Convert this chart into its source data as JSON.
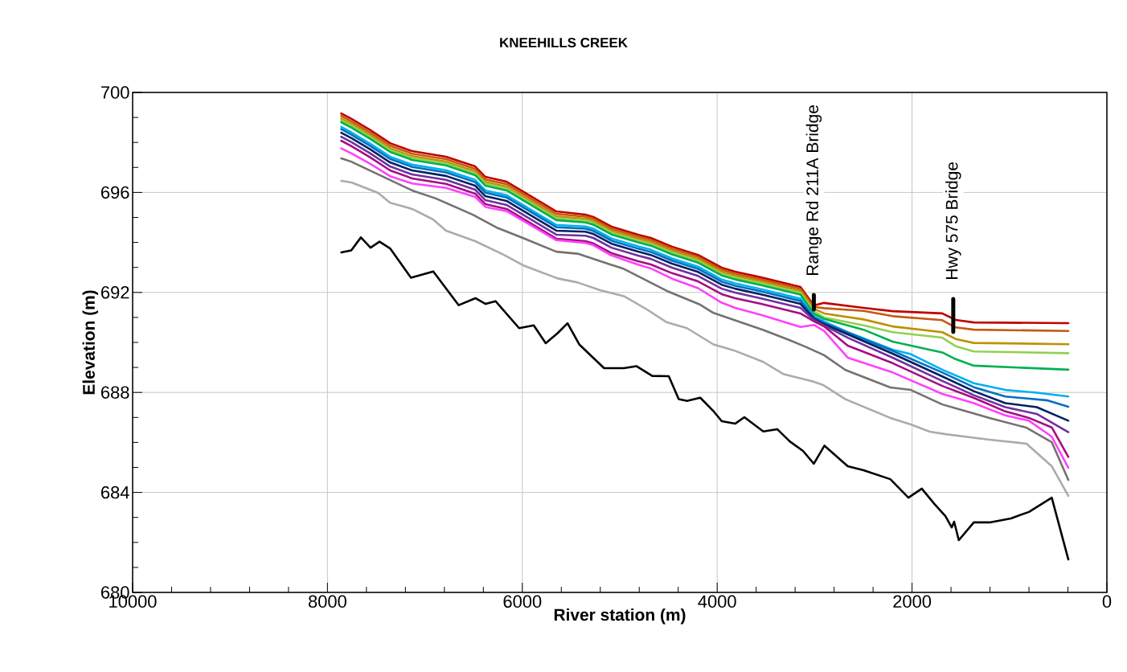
{
  "chart_data": {
    "type": "line",
    "title": "KNEEHILLS CREEK",
    "xlabel": "River station (m)",
    "ylabel": "Elevation (m)",
    "xlim": [
      10000,
      0
    ],
    "ylim": [
      680,
      700
    ],
    "xticks": [
      10000,
      {
        "value": 9600,
        "label": null
      },
      {
        "value": 9200,
        "label": null
      },
      {
        "value": 8800,
        "label": null
      },
      {
        "value": 8400,
        "label": null
      },
      8000,
      {
        "value": 7600,
        "label": null
      },
      {
        "value": 7200,
        "label": null
      },
      {
        "value": 6800,
        "label": null
      },
      {
        "value": 6400,
        "label": null
      },
      6000,
      {
        "value": 5600,
        "label": null
      },
      {
        "value": 5200,
        "label": null
      },
      {
        "value": 4800,
        "label": null
      },
      {
        "value": 4400,
        "label": null
      },
      4000,
      {
        "value": 3600,
        "label": null
      },
      {
        "value": 3200,
        "label": null
      },
      {
        "value": 2800,
        "label": null
      },
      {
        "value": 2400,
        "label": null
      },
      2000,
      {
        "value": 1600,
        "label": null
      },
      {
        "value": 1200,
        "label": null
      },
      {
        "value": 800,
        "label": null
      },
      {
        "value": 400,
        "label": null
      },
      0
    ],
    "yticks": [
      680,
      {
        "value": 681,
        "label": null
      },
      {
        "value": 682,
        "label": null
      },
      {
        "value": 683,
        "label": null
      },
      684,
      {
        "value": 685,
        "label": null
      },
      {
        "value": 686,
        "label": null
      },
      {
        "value": 687,
        "label": null
      },
      688,
      {
        "value": 689,
        "label": null
      },
      {
        "value": 690,
        "label": null
      },
      {
        "value": 691,
        "label": null
      },
      692,
      {
        "value": 693,
        "label": null
      },
      {
        "value": 694,
        "label": null
      },
      {
        "value": 695,
        "label": null
      },
      696,
      {
        "value": 697,
        "label": null
      },
      {
        "value": 698,
        "label": null
      },
      {
        "value": 699,
        "label": null
      },
      700
    ],
    "grid": true,
    "series": [
      {
        "color": "#c00000",
        "x": [
          7859,
          7753,
          7560,
          7357,
          7131,
          6783,
          6484,
          6379,
          6161,
          5651,
          5352,
          5271,
          5085,
          4811,
          4681,
          4463,
          4196,
          3954,
          3816,
          3549,
          3145,
          3008,
          2903,
          2498,
          2199,
          1690,
          1552,
          1366,
          396
        ],
        "values": [
          699.16,
          698.94,
          698.49,
          697.97,
          697.65,
          697.43,
          697.04,
          696.62,
          696.43,
          695.24,
          695.11,
          695.02,
          694.63,
          694.31,
          694.18,
          693.83,
          693.5,
          692.99,
          692.83,
          692.6,
          692.22,
          691.48,
          691.58,
          691.38,
          691.25,
          691.16,
          690.9,
          690.8,
          690.77
        ]
      },
      {
        "color": "#c55a11",
        "x": [
          7859,
          7753,
          7560,
          7357,
          7131,
          6783,
          6484,
          6379,
          6161,
          5651,
          5352,
          5271,
          5085,
          4811,
          4681,
          4463,
          4196,
          3954,
          3816,
          3549,
          3145,
          3008,
          2903,
          2498,
          2199,
          1690,
          1552,
          1366,
          396
        ],
        "values": [
          699.06,
          698.84,
          698.39,
          697.87,
          697.55,
          697.33,
          696.94,
          696.52,
          696.33,
          695.14,
          695.03,
          694.94,
          694.55,
          694.23,
          694.1,
          693.75,
          693.42,
          692.91,
          692.75,
          692.52,
          692.14,
          691.42,
          691.37,
          691.26,
          691.05,
          690.89,
          690.6,
          690.51,
          690.46
        ]
      },
      {
        "color": "#bf9000",
        "x": [
          7859,
          7753,
          7560,
          7357,
          7131,
          6783,
          6484,
          6379,
          6161,
          5651,
          5352,
          5271,
          5085,
          4811,
          4681,
          4463,
          4196,
          3954,
          3816,
          3549,
          3145,
          3008,
          2903,
          2498,
          2199,
          1690,
          1552,
          1366,
          396
        ],
        "values": [
          698.96,
          698.74,
          698.29,
          697.77,
          697.45,
          697.23,
          696.84,
          696.42,
          696.23,
          695.04,
          694.95,
          694.86,
          694.47,
          694.15,
          694.02,
          693.67,
          693.34,
          692.83,
          692.67,
          692.44,
          692.06,
          691.35,
          691.16,
          690.92,
          690.64,
          690.41,
          690.14,
          689.98,
          689.93
        ]
      },
      {
        "color": "#92d050",
        "x": [
          7859,
          7753,
          7560,
          7357,
          7131,
          6783,
          6484,
          6379,
          6161,
          5651,
          5352,
          5271,
          5085,
          4811,
          4681,
          4463,
          4196,
          3954,
          3816,
          3549,
          3145,
          3008,
          2903,
          2498,
          2199,
          1690,
          1552,
          1366,
          396
        ],
        "values": [
          698.89,
          698.67,
          698.22,
          697.7,
          697.38,
          697.16,
          696.77,
          696.35,
          696.16,
          694.97,
          694.87,
          694.78,
          694.39,
          694.07,
          693.94,
          693.59,
          693.26,
          692.75,
          692.59,
          692.36,
          691.98,
          691.25,
          691.0,
          690.68,
          690.41,
          690.19,
          689.85,
          689.64,
          689.57
        ]
      },
      {
        "color": "#00b050",
        "x": [
          7859,
          7753,
          7560,
          7357,
          7131,
          6783,
          6484,
          6379,
          6161,
          5651,
          5352,
          5271,
          5085,
          4811,
          4681,
          4463,
          4196,
          3954,
          3816,
          3549,
          3145,
          3008,
          2903,
          2498,
          2199,
          1690,
          1552,
          1366,
          396
        ],
        "values": [
          698.81,
          698.59,
          698.14,
          697.62,
          697.3,
          697.08,
          696.69,
          696.27,
          696.08,
          694.89,
          694.8,
          694.71,
          694.32,
          694.0,
          693.87,
          693.52,
          693.19,
          692.68,
          692.52,
          692.29,
          691.91,
          691.15,
          690.94,
          690.51,
          690.03,
          689.6,
          689.33,
          689.07,
          688.91
        ]
      },
      {
        "color": "#00b0f0",
        "x": [
          7859,
          7753,
          7560,
          7357,
          7131,
          6783,
          6484,
          6379,
          6161,
          5651,
          5352,
          5271,
          5085,
          4811,
          4681,
          4463,
          4196,
          3954,
          3816,
          3549,
          3145,
          3008,
          2903,
          2660,
          2199,
          2013,
          1690,
          1366,
          1043,
          720,
          396
        ],
        "values": [
          698.62,
          698.4,
          697.95,
          697.43,
          697.11,
          696.89,
          696.5,
          696.08,
          695.89,
          694.7,
          694.64,
          694.55,
          694.16,
          693.84,
          693.71,
          693.36,
          693.03,
          692.52,
          692.36,
          692.13,
          691.75,
          691.05,
          690.84,
          690.41,
          689.71,
          689.53,
          688.91,
          688.37,
          688.1,
          687.99,
          687.84
        ]
      },
      {
        "color": "#0070c0",
        "x": [
          7859,
          7753,
          7560,
          7357,
          7131,
          6783,
          6484,
          6379,
          6161,
          5651,
          5352,
          5271,
          5085,
          4811,
          4681,
          4463,
          4196,
          3954,
          3816,
          3549,
          3145,
          3008,
          2903,
          2199,
          1690,
          1366,
          1043,
          607,
          396
        ],
        "values": [
          698.53,
          698.31,
          697.86,
          697.34,
          697.02,
          696.8,
          696.41,
          695.99,
          695.8,
          694.61,
          694.55,
          694.46,
          694.07,
          693.75,
          693.62,
          693.27,
          692.94,
          692.43,
          692.27,
          692.04,
          691.66,
          691.0,
          690.78,
          689.66,
          688.8,
          688.21,
          687.84,
          687.68,
          687.43
        ]
      },
      {
        "color": "#002060",
        "x": [
          7859,
          7753,
          7560,
          7357,
          7131,
          6783,
          6484,
          6379,
          6161,
          5651,
          5352,
          5271,
          5085,
          4811,
          4681,
          4463,
          4196,
          3954,
          3816,
          3549,
          3145,
          3008,
          2903,
          2199,
          1690,
          1366,
          1043,
          720,
          396
        ],
        "values": [
          698.39,
          698.17,
          697.72,
          697.2,
          696.88,
          696.66,
          696.27,
          695.85,
          695.66,
          694.47,
          694.43,
          694.34,
          693.95,
          693.63,
          693.5,
          693.15,
          692.82,
          692.31,
          692.15,
          691.92,
          691.54,
          690.95,
          690.73,
          689.55,
          688.64,
          688.05,
          687.57,
          687.41,
          686.87
        ]
      },
      {
        "color": "#7030a0",
        "x": [
          7859,
          7753,
          7560,
          7357,
          7131,
          6783,
          6484,
          6379,
          6161,
          5651,
          5352,
          5271,
          5085,
          4811,
          4681,
          4463,
          4196,
          3954,
          3816,
          3549,
          3145,
          3008,
          2903,
          2660,
          2199,
          1690,
          1366,
          1043,
          720,
          396
        ],
        "values": [
          698.23,
          698.01,
          697.56,
          697.04,
          696.72,
          696.5,
          696.11,
          695.69,
          695.5,
          694.31,
          694.27,
          694.18,
          693.79,
          693.47,
          693.34,
          692.99,
          692.66,
          692.15,
          691.99,
          691.76,
          691.38,
          690.9,
          690.68,
          690.19,
          689.39,
          688.46,
          687.89,
          687.41,
          687.14,
          686.41
        ]
      },
      {
        "color": "#a50e82",
        "x": [
          7859,
          7753,
          7560,
          7357,
          7131,
          6783,
          6484,
          6379,
          6161,
          5651,
          5352,
          5271,
          5085,
          4811,
          4681,
          4463,
          4196,
          3954,
          3816,
          3549,
          3145,
          3008,
          2903,
          2660,
          2199,
          1690,
          1366,
          1043,
          800,
          566,
          396
        ],
        "values": [
          698.07,
          697.85,
          697.4,
          696.88,
          696.56,
          696.34,
          695.95,
          695.53,
          695.34,
          694.15,
          694.05,
          693.96,
          693.57,
          693.25,
          693.12,
          692.77,
          692.44,
          691.93,
          691.77,
          691.54,
          691.16,
          690.85,
          690.64,
          689.87,
          689.17,
          688.26,
          687.78,
          687.24,
          686.98,
          686.6,
          685.42
        ]
      },
      {
        "color": "#ff40ff",
        "x": [
          7859,
          7753,
          7560,
          7357,
          7131,
          6783,
          6484,
          6379,
          6161,
          5651,
          5352,
          5271,
          5085,
          4811,
          4681,
          4463,
          4196,
          3954,
          3816,
          3549,
          3145,
          3008,
          2903,
          2660,
          2199,
          1690,
          1366,
          1043,
          800,
          566,
          396
        ],
        "values": [
          697.76,
          697.56,
          697.14,
          696.65,
          696.36,
          696.18,
          695.82,
          695.42,
          695.25,
          694.09,
          693.98,
          693.89,
          693.48,
          693.11,
          692.96,
          692.55,
          692.17,
          691.59,
          691.38,
          691.1,
          690.62,
          690.7,
          690.46,
          689.39,
          688.8,
          687.94,
          687.57,
          687.08,
          686.87,
          686.23,
          684.99
        ]
      },
      {
        "color": "#767171",
        "x": [
          7858,
          7756,
          7131,
          6888,
          6508,
          6266,
          5975,
          5651,
          5433,
          4957,
          4516,
          4174,
          4038,
          3527,
          3255,
          3089,
          2903,
          2684,
          2223,
          2013,
          1690,
          1205,
          825,
          566,
          396
        ],
        "values": [
          697.36,
          697.23,
          696.08,
          695.76,
          695.11,
          694.6,
          694.15,
          693.63,
          693.55,
          692.94,
          692.06,
          691.51,
          691.18,
          690.5,
          690.09,
          689.82,
          689.49,
          688.9,
          688.2,
          688.1,
          687.52,
          686.98,
          686.59,
          686.01,
          684.5
        ]
      },
      {
        "color": "#aeaaaa",
        "x": [
          7858,
          7753,
          7480,
          7357,
          7131,
          6916,
          6783,
          6484,
          6188,
          5983,
          5638,
          5433,
          5195,
          4957,
          4718,
          4516,
          4310,
          4038,
          3833,
          3527,
          3324,
          3018,
          2914,
          2684,
          2223,
          2013,
          1819,
          1657,
          1205,
          825,
          566,
          396
        ],
        "values": [
          696.46,
          696.4,
          695.98,
          695.59,
          695.34,
          694.92,
          694.47,
          694.05,
          693.5,
          693.07,
          692.56,
          692.4,
          692.08,
          691.85,
          691.31,
          690.8,
          690.57,
          689.92,
          689.69,
          689.22,
          688.74,
          688.44,
          688.3,
          687.73,
          686.98,
          686.72,
          686.43,
          686.33,
          686.11,
          685.95,
          685.05,
          683.86
        ]
      },
      {
        "color": "#000000",
        "x": [
          7858,
          7756,
          7657,
          7558,
          7466,
          7357,
          7143,
          6914,
          6653,
          6482,
          6377,
          6275,
          6033,
          5883,
          5760,
          5638,
          5536,
          5416,
          5161,
          4957,
          4827,
          4667,
          4497,
          4395,
          4310,
          4174,
          4038,
          3953,
          3816,
          3721,
          3527,
          3384,
          3255,
          3119,
          3008,
          2899,
          2660,
          2498,
          2223,
          2037,
          1900,
          1771,
          1657,
          1593,
          1568,
          1520,
          1366,
          1205,
          986,
          800,
          566,
          396
        ],
        "values": [
          693.6,
          693.68,
          694.2,
          693.79,
          694.03,
          693.76,
          692.59,
          692.84,
          691.49,
          691.77,
          691.54,
          691.65,
          690.57,
          690.68,
          689.97,
          690.37,
          690.77,
          689.92,
          688.97,
          688.97,
          689.05,
          688.66,
          688.65,
          687.73,
          687.66,
          687.79,
          687.25,
          686.85,
          686.75,
          687.01,
          686.44,
          686.53,
          686.04,
          685.66,
          685.15,
          685.87,
          685.05,
          684.89,
          684.53,
          683.79,
          684.15,
          683.54,
          683.05,
          682.6,
          682.83,
          682.09,
          682.8,
          682.8,
          682.96,
          683.22,
          683.79,
          681.32
        ]
      },
      {
        "color": "#000000",
        "x": [
          3008,
          3008
        ],
        "values": [
          691.32,
          691.9
        ]
      },
      {
        "color": "#000000",
        "x": [
          1577,
          1577
        ],
        "values": [
          690.42,
          691.74
        ]
      }
    ],
    "annotations": [
      {
        "text": "Range Rd 211A Bridge",
        "x": 3008,
        "y": 691.9
      },
      {
        "text": "Hwy 575 Bridge",
        "x": 1577,
        "y": 691.74
      }
    ]
  }
}
